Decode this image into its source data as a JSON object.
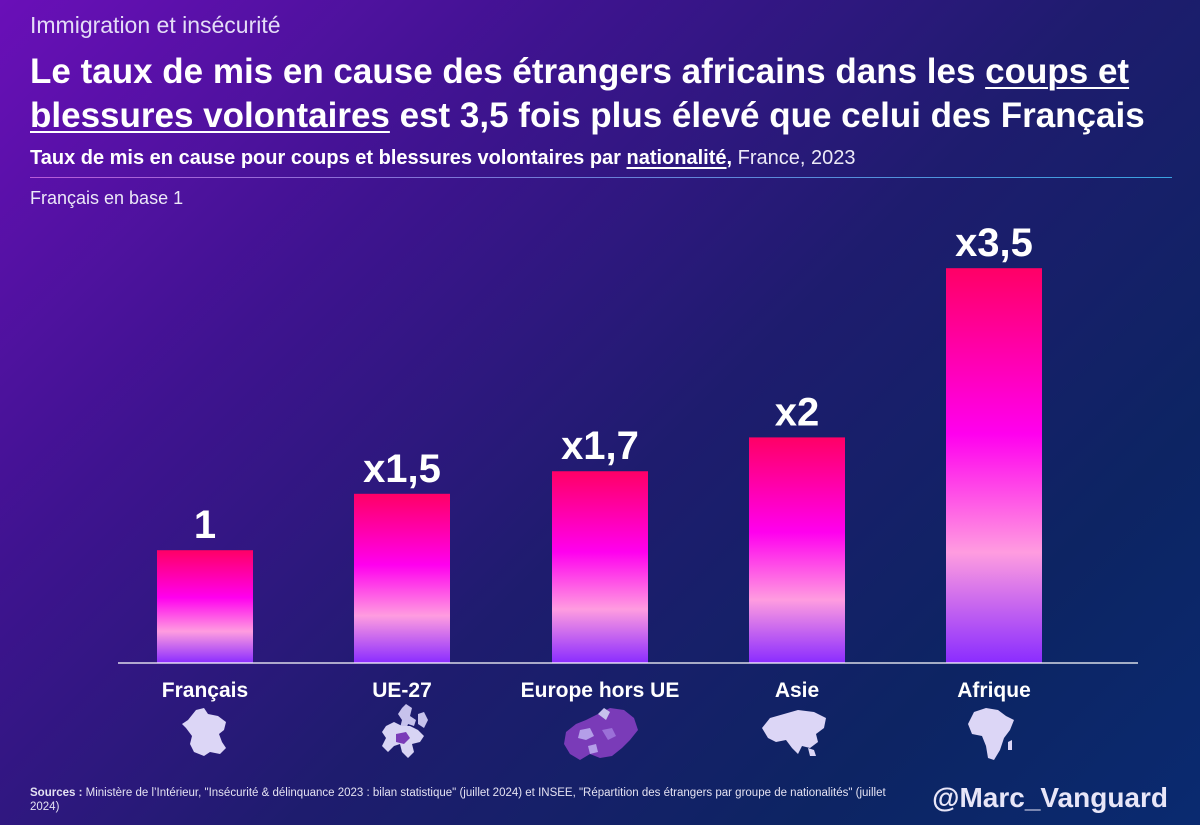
{
  "header": {
    "kicker": "Immigration et insécurité",
    "headline_part1": "Le taux de mis en cause des étrangers africains dans les ",
    "headline_link1": "coups et blessures volontaires",
    "headline_part2": " est 3,5 fois plus élevé que celui des Français"
  },
  "subtitle": {
    "bold_prefix": "Taux de mis en cause pour coups et blessures volontaires par ",
    "underlined": "nationalité",
    "comma": ",",
    "rest": " France, 2023"
  },
  "note": "Français en base 1",
  "chart_data": {
    "type": "bar",
    "title": "Taux de mis en cause pour coups et blessures volontaires par nationalité, France, 2023",
    "ylabel": "Français en base 1",
    "xlabel": "",
    "categories": [
      "Français",
      "UE-27",
      "Europe hors UE",
      "Asie",
      "Afrique"
    ],
    "values": [
      1,
      1.5,
      1.7,
      2,
      3.5
    ],
    "data_labels": [
      "1",
      "x1,5",
      "x1,7",
      "x2",
      "x3,5"
    ],
    "ylim": [
      0,
      3.75
    ],
    "grid": false,
    "colors": {
      "top": "#ff0066",
      "mid": "#ff00ee",
      "light": "#ff9ce0",
      "bottom": "#8a2cff"
    }
  },
  "icons": [
    "france-map-icon",
    "eu-map-icon",
    "europe-map-icon",
    "asia-map-icon",
    "africa-map-icon"
  ],
  "footer": {
    "sources_label": "Sources :",
    "sources_text": " Ministère de l’Intérieur, \"Insécurité & délinquance 2023 : bilan statistique\" (juillet 2024) et INSEE, \"Répartition des étrangers par groupe de nationalités\" (juillet 2024)",
    "handle": "@Marc_Vanguard"
  }
}
